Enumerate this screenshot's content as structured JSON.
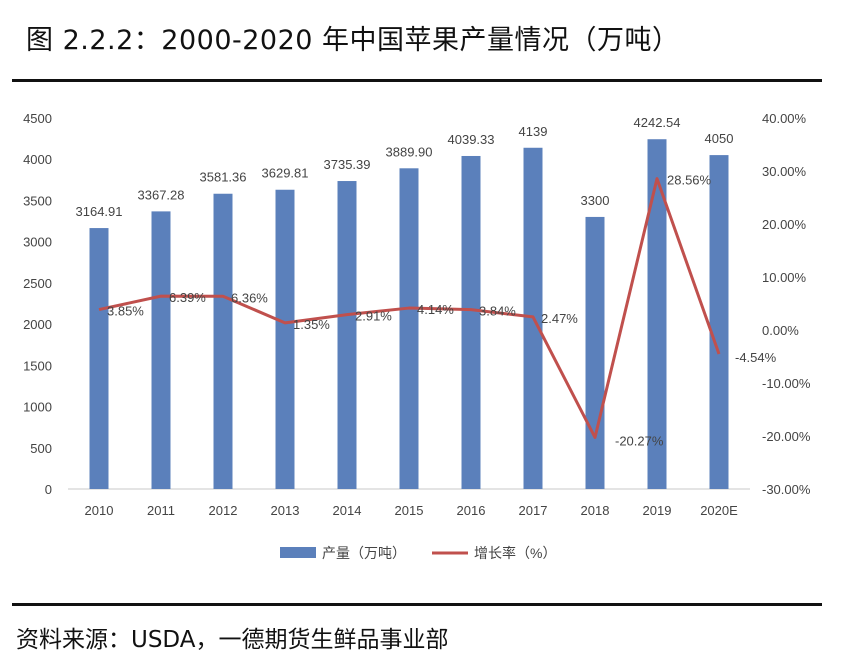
{
  "title": "图 2.2.2：2000-2020 年中国苹果产量情况（万吨）",
  "source": "资料来源：USDA，一德期货生鲜品事业部",
  "colors": {
    "bar": "#5b80bb",
    "line": "#c0504d",
    "axis": "#c8c8c8",
    "text": "#444444"
  },
  "chart_data": {
    "type": "bar",
    "categories": [
      "2010",
      "2011",
      "2012",
      "2013",
      "2014",
      "2015",
      "2016",
      "2017",
      "2018",
      "2019",
      "2020E"
    ],
    "series": [
      {
        "name": "产量（万吨）",
        "type": "bar",
        "axis": "left",
        "values": [
          3164.91,
          3367.28,
          3581.36,
          3629.81,
          3735.39,
          3889.9,
          4039.33,
          4139,
          3300,
          4242.54,
          4050
        ],
        "labels": [
          "3164.91",
          "3367.28",
          "3581.36",
          "3629.81",
          "3735.39",
          "3889.90",
          "4039.33",
          "4139",
          "3300",
          "4242.54",
          "4050"
        ]
      },
      {
        "name": "增长率（%）",
        "type": "line",
        "axis": "right",
        "values": [
          3.85,
          6.39,
          6.36,
          1.35,
          2.91,
          4.14,
          3.84,
          2.47,
          -20.27,
          28.56,
          -4.54
        ],
        "labels": [
          "3.85%",
          "6.39%",
          "6.36%",
          "1.35%",
          "2.91%",
          "4.14%",
          "3.84%",
          "2.47%",
          "-20.27%",
          "28.56%",
          "-4.54%"
        ]
      }
    ],
    "y_left": {
      "ylim": [
        0,
        4500
      ],
      "ticks": [
        "0",
        "500",
        "1000",
        "1500",
        "2000",
        "2500",
        "3000",
        "3500",
        "4000",
        "4500"
      ]
    },
    "y_right": {
      "ylim": [
        -30,
        40
      ],
      "ticks": [
        "-30.00%",
        "-20.00%",
        "-10.00%",
        "0.00%",
        "10.00%",
        "20.00%",
        "30.00%",
        "40.00%"
      ]
    },
    "grid": false,
    "legend": "bottom"
  }
}
